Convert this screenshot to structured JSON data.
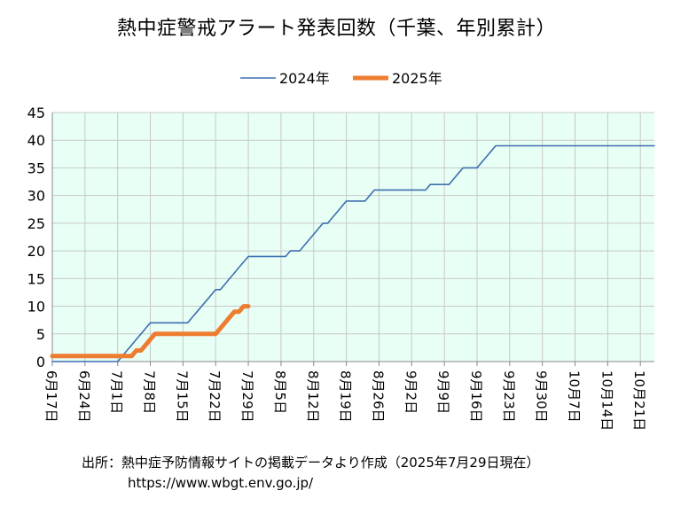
{
  "chart_data": {
    "type": "line",
    "title": "熱中症警戒アラート発表回数（千葉、年別累計）",
    "xlabel": "",
    "ylabel": "",
    "ylim": [
      0,
      45
    ],
    "yticks": [
      "0",
      "5",
      "10",
      "15",
      "20",
      "25",
      "30",
      "35",
      "40",
      "45"
    ],
    "x_range": [
      "6月17日",
      "10月24日"
    ],
    "xticks": [
      {
        "label": "6月17日",
        "date": "6月17日"
      },
      {
        "label": "6月24日",
        "date": "6月24日"
      },
      {
        "label": "7月1日",
        "date": "7月1日"
      },
      {
        "label": "7月8日",
        "date": "7月8日"
      },
      {
        "label": "7月15日",
        "date": "7月15日"
      },
      {
        "label": "7月22日",
        "date": "7月22日"
      },
      {
        "label": "7月29日",
        "date": "7月29日"
      },
      {
        "label": "8月5日",
        "date": "8月5日"
      },
      {
        "label": "8月12日",
        "date": "8月12日"
      },
      {
        "label": "8月19日",
        "date": "8月19日"
      },
      {
        "label": "8月26日",
        "date": "8月26日"
      },
      {
        "label": "9月2日",
        "date": "9月2日"
      },
      {
        "label": "9月9日",
        "date": "9月9日"
      },
      {
        "label": "9月16日",
        "date": "9月16日"
      },
      {
        "label": "9月23日",
        "date": "9月23日"
      },
      {
        "label": "9月30日",
        "date": "9月30日"
      },
      {
        "label": "10月7日",
        "date": "10月7日"
      },
      {
        "label": "10月14日",
        "date": "10月14日"
      },
      {
        "label": "10月21日",
        "date": "10月21日"
      }
    ],
    "grid": true,
    "legend_position": "top-center",
    "background_color": "#e8fff5",
    "series": [
      {
        "name": "2024年",
        "color": "#3d6fb0",
        "points": [
          [
            "6月17日",
            0
          ],
          [
            "7月1日",
            0
          ],
          [
            "7月2日",
            1
          ],
          [
            "7月3日",
            2
          ],
          [
            "7月4日",
            3
          ],
          [
            "7月5日",
            4
          ],
          [
            "7月6日",
            5
          ],
          [
            "7月7日",
            6
          ],
          [
            "7月8日",
            7
          ],
          [
            "7月16日",
            7
          ],
          [
            "7月17日",
            8
          ],
          [
            "7月18日",
            9
          ],
          [
            "7月19日",
            10
          ],
          [
            "7月20日",
            11
          ],
          [
            "7月21日",
            12
          ],
          [
            "7月22日",
            13
          ],
          [
            "7月23日",
            13
          ],
          [
            "7月24日",
            14
          ],
          [
            "7月25日",
            15
          ],
          [
            "7月26日",
            16
          ],
          [
            "7月27日",
            17
          ],
          [
            "7月28日",
            18
          ],
          [
            "7月29日",
            19
          ],
          [
            "8月6日",
            19
          ],
          [
            "8月7日",
            20
          ],
          [
            "8月9日",
            20
          ],
          [
            "8月10日",
            21
          ],
          [
            "8月11日",
            22
          ],
          [
            "8月12日",
            23
          ],
          [
            "8月13日",
            24
          ],
          [
            "8月14日",
            25
          ],
          [
            "8月15日",
            25
          ],
          [
            "8月16日",
            26
          ],
          [
            "8月17日",
            27
          ],
          [
            "8月18日",
            28
          ],
          [
            "8月19日",
            29
          ],
          [
            "8月23日",
            29
          ],
          [
            "8月24日",
            30
          ],
          [
            "8月25日",
            31
          ],
          [
            "9月5日",
            31
          ],
          [
            "9月6日",
            32
          ],
          [
            "9月10日",
            32
          ],
          [
            "9月11日",
            33
          ],
          [
            "9月12日",
            34
          ],
          [
            "9月13日",
            35
          ],
          [
            "9月16日",
            35
          ],
          [
            "9月17日",
            36
          ],
          [
            "9月18日",
            37
          ],
          [
            "9月19日",
            38
          ],
          [
            "9月20日",
            39
          ],
          [
            "10月24日",
            39
          ]
        ]
      },
      {
        "name": "2025年",
        "color": "#ed7d31",
        "points": [
          [
            "6月17日",
            1
          ],
          [
            "7月4日",
            1
          ],
          [
            "7月5日",
            2
          ],
          [
            "7月6日",
            2
          ],
          [
            "7月7日",
            3
          ],
          [
            "7月8日",
            4
          ],
          [
            "7月9日",
            5
          ],
          [
            "7月21日",
            5
          ],
          [
            "7月22日",
            5
          ],
          [
            "7月23日",
            6
          ],
          [
            "7月24日",
            7
          ],
          [
            "7月25日",
            8
          ],
          [
            "7月26日",
            9
          ],
          [
            "7月27日",
            9
          ],
          [
            "7月28日",
            10
          ],
          [
            "7月29日",
            10
          ]
        ]
      }
    ]
  },
  "source": "出所：熱中症予防情報サイトの掲載データより作成（2025年7月29日現在）",
  "url": "https://www.wbgt.env.go.jp/"
}
